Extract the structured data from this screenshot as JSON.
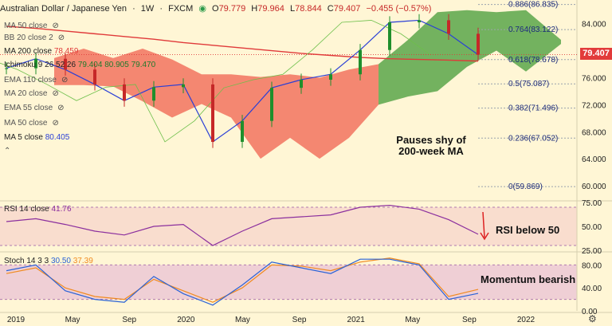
{
  "header": {
    "symbol": "Australian Dollar / Japanese Yen",
    "interval": "1W",
    "source": "FXCM",
    "o_label": "O",
    "o": "79.779",
    "h_label": "H",
    "h": "79.964",
    "l_label": "L",
    "l": "78.844",
    "c_label": "C",
    "c": "79.407",
    "change": "−0.455 (−0.57%)"
  },
  "indicators": [
    {
      "label": "MA 50 close",
      "value": ""
    },
    {
      "label": "BB 20 close 2",
      "value": ""
    },
    {
      "label": "MA 200 close",
      "value": "78.459"
    },
    {
      "label": "Ichimoku 9 26 52 26",
      "value": "79.404  80.905  79.470"
    },
    {
      "label": "EMA 110 close",
      "value": ""
    },
    {
      "label": "MA 20 close",
      "value": ""
    },
    {
      "label": "EMA 55 close",
      "value": ""
    },
    {
      "label": "MA 50 close",
      "value": ""
    },
    {
      "label": "MA 5 close",
      "value": "80.405"
    }
  ],
  "annotations": {
    "main": "Pauses shy of\n200-week MA",
    "rsi": "RSI below 50",
    "stoch": "Momentum bearish"
  },
  "price_tag": "79.407",
  "rsi_label": {
    "name": "RSI 14 close",
    "value": "41.76"
  },
  "stoch_label": {
    "name": "Stoch 14 3 3",
    "k": "30.50",
    "d": "37.39"
  },
  "colors": {
    "background": "#fff6d5",
    "price_line": "#2a3fd6",
    "ma200": "#e03a3a",
    "cloud_bull": "#5aa64a",
    "cloud_bear": "#f2735f",
    "up_candle": "#1f8f2c",
    "down_candle": "#c62828",
    "lagging": "#6dbf4a",
    "rsi": "#8b2f9e",
    "stoch_k": "#2a62d6",
    "stoch_d": "#f08a1f"
  },
  "chart_data": {
    "type": "line",
    "title": "Australian Dollar / Japanese Yen",
    "x": [
      "2019-01",
      "2019-03",
      "2019-05",
      "2019-07",
      "2019-09",
      "2019-11",
      "2020-01",
      "2020-03",
      "2020-05",
      "2020-07",
      "2020-09",
      "2020-11",
      "2021-01",
      "2021-03",
      "2021-05",
      "2021-07",
      "2021-09"
    ],
    "series": [
      {
        "name": "Close",
        "values": [
          77.4,
          78.8,
          77.2,
          75.0,
          72.6,
          74.6,
          75.0,
          66.5,
          69.6,
          74.5,
          75.7,
          76.5,
          80.1,
          84.2,
          84.5,
          82.5,
          79.407
        ]
      },
      {
        "name": "MA 200 close",
        "values": [
          83.6,
          83.3,
          82.9,
          82.5,
          82.1,
          81.7,
          81.2,
          80.8,
          80.4,
          80.0,
          79.6,
          79.3,
          79.0,
          78.8,
          78.7,
          78.6,
          78.459
        ]
      }
    ],
    "ylim": [
      58,
      87.5
    ],
    "price_axis": [
      "84.000",
      "80.000",
      "76.000",
      "72.000",
      "68.000",
      "64.000",
      "60.000"
    ],
    "fibonacci": [
      {
        "label": "0.886(86.835)",
        "value": 86.835
      },
      {
        "label": "0.764(83.122)",
        "value": 83.122
      },
      {
        "label": "0.618(78.678)",
        "value": 78.678
      },
      {
        "label": "0.5(75.087)",
        "value": 75.087
      },
      {
        "label": "0.382(71.496)",
        "value": 71.496
      },
      {
        "label": "0.236(67.052)",
        "value": 67.052
      },
      {
        "label": "0(59.869)",
        "value": 59.869
      }
    ],
    "time_axis": [
      "2019",
      "May",
      "Sep",
      "2020",
      "May",
      "Sep",
      "2021",
      "May",
      "Sep",
      "2022"
    ],
    "rsi": {
      "values": [
        55,
        58,
        52,
        45,
        41,
        50,
        52,
        30,
        45,
        58,
        60,
        62,
        70,
        72,
        68,
        57,
        41.76
      ],
      "ylim": [
        25,
        75
      ],
      "levels": [
        30,
        70
      ],
      "axis": [
        "75.00",
        "50.00",
        "25.00"
      ]
    },
    "stoch": {
      "k": [
        70,
        80,
        35,
        20,
        15,
        60,
        30,
        10,
        45,
        85,
        75,
        65,
        90,
        90,
        80,
        20,
        30.5
      ],
      "d": [
        65,
        75,
        40,
        25,
        20,
        55,
        35,
        15,
        40,
        80,
        78,
        70,
        85,
        92,
        82,
        25,
        37.39
      ],
      "ylim": [
        0,
        100
      ],
      "levels": [
        20,
        80
      ],
      "axis": [
        "80.00",
        "40.00",
        "0.00"
      ]
    }
  }
}
